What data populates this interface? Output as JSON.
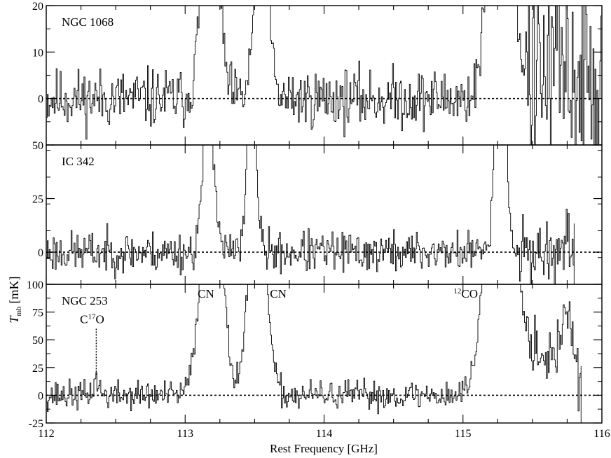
{
  "chart_data": {
    "type": "line",
    "xlabel": "Rest Frequency [GHz]",
    "ylabel_main": "T",
    "ylabel_sub": "mb",
    "ylabel_unit": "[mK]",
    "xlim": [
      112,
      116
    ],
    "xticks": [
      "112",
      "113",
      "114",
      "115",
      "116"
    ],
    "panels": [
      {
        "name": "NGC 1068",
        "ylim": [
          -10,
          20
        ],
        "yticks": [
          "0",
          "10",
          "20"
        ],
        "ytick_values": [
          0,
          10,
          20
        ],
        "seed": 11,
        "noise": 3.2,
        "features": [
          {
            "center": 113.18,
            "amp": 55,
            "width": 0.055
          },
          {
            "center": 113.55,
            "amp": 45,
            "width": 0.045
          },
          {
            "center": 115.27,
            "amp": 80,
            "width": 0.07
          },
          {
            "center": 115.7,
            "amp": 6,
            "width": 0.2
          }
        ],
        "noise_boost_above": 115.45,
        "noise_boost": 3.5
      },
      {
        "name": "IC 342",
        "ylim": [
          -15,
          50
        ],
        "yticks": [
          "0",
          "25",
          "50"
        ],
        "ytick_values": [
          0,
          25,
          50
        ],
        "seed": 23,
        "noise": 4.8,
        "features": [
          {
            "center": 113.17,
            "amp": 70,
            "width": 0.04
          },
          {
            "center": 113.48,
            "amp": 90,
            "width": 0.03
          },
          {
            "center": 115.27,
            "amp": 120,
            "width": 0.035
          }
        ],
        "noise_boost_above": 115.4,
        "noise_boost": 1.6,
        "end_x": 115.8
      },
      {
        "name": "NGC 253",
        "ylim": [
          -25,
          100
        ],
        "yticks": [
          "-25",
          "0",
          "25",
          "50",
          "75",
          "100"
        ],
        "ytick_values": [
          -25,
          0,
          25,
          50,
          75,
          100
        ],
        "seed": 37,
        "noise": 6.5,
        "features": [
          {
            "center": 112.36,
            "amp": 14,
            "width": 0.02
          },
          {
            "center": 113.19,
            "amp": 220,
            "width": 0.07
          },
          {
            "center": 113.52,
            "amp": 200,
            "width": 0.06
          },
          {
            "center": 115.27,
            "amp": 300,
            "width": 0.09
          },
          {
            "center": 115.55,
            "amp": 40,
            "width": 0.12
          },
          {
            "center": 115.75,
            "amp": 70,
            "width": 0.04
          }
        ],
        "noise_boost_above": 115.45,
        "noise_boost": 2.0,
        "end_x": 115.85,
        "annotations": [
          {
            "text": "CN",
            "x": 113.15,
            "y": 88
          },
          {
            "text": "CN",
            "x": 113.67,
            "y": 88
          },
          {
            "text_sup": "12",
            "text": "CO",
            "x": 115.02,
            "y": 88
          },
          {
            "text": "C",
            "text_sup": "17",
            "text_after": "O",
            "x": 112.33,
            "y": 65,
            "marker_x": 112.36,
            "marker_y_top": 60,
            "marker_y_bottom": 17
          }
        ]
      }
    ]
  }
}
